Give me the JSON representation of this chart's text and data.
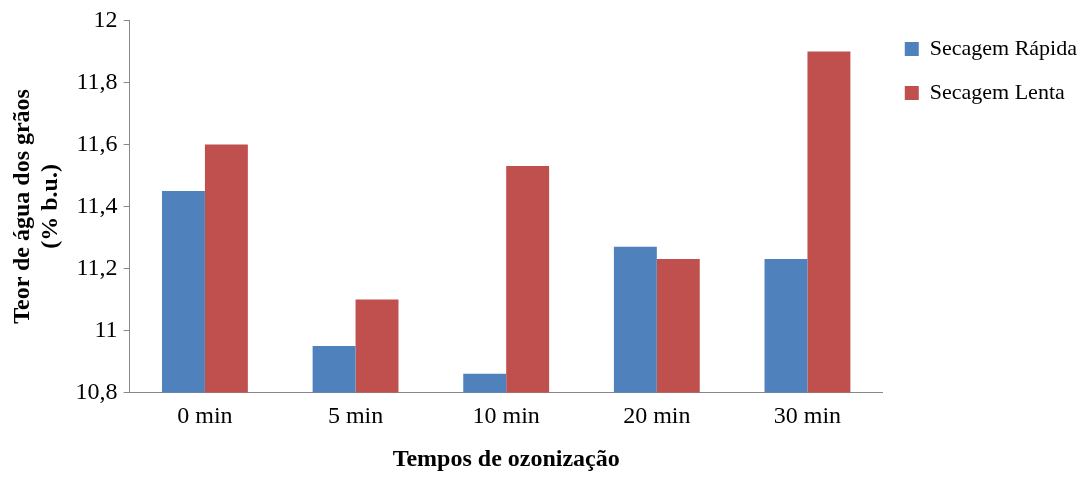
{
  "chart_data": {
    "type": "bar",
    "xlabel": "Tempos de ozonização",
    "ylabel": "Teor de água dos grãos\n(% b.u.)",
    "categories": [
      "0 min",
      "5 min",
      "10 min",
      "20 min",
      "30 min"
    ],
    "series": [
      {
        "name": "Secagem Rápida",
        "color": "#4f81bd",
        "values": [
          11.45,
          10.95,
          10.86,
          11.27,
          11.23
        ]
      },
      {
        "name": "Secagem Lenta",
        "color": "#c0504d",
        "values": [
          11.6,
          11.1,
          11.53,
          11.23,
          11.9
        ]
      }
    ],
    "ylim": [
      10.8,
      12
    ],
    "yticks": [
      {
        "value": 10.8,
        "label": "10,8"
      },
      11,
      {
        "value": 11.2,
        "label": "11,2"
      },
      {
        "value": 11.4,
        "label": "11,4"
      },
      {
        "value": 11.6,
        "label": "11,6"
      },
      {
        "value": 11.8,
        "label": "11,8"
      },
      12
    ],
    "grid": false,
    "legend": "right"
  }
}
